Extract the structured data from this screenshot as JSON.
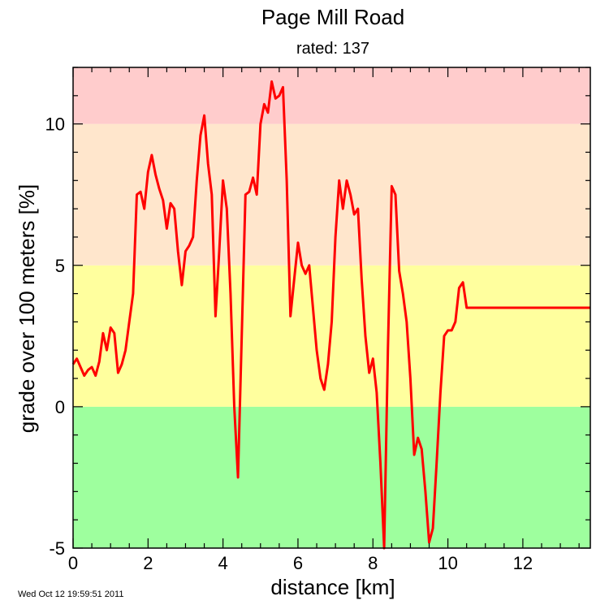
{
  "chart_data": {
    "type": "line",
    "title": "Page Mill Road",
    "subtitle": "rated: 137",
    "xlabel": "distance [km]",
    "ylabel": "grade over 100 meters [%]",
    "xlim": [
      0,
      13.8
    ],
    "ylim": [
      -5,
      12
    ],
    "x_ticks": [
      0,
      2,
      4,
      6,
      8,
      10,
      12
    ],
    "y_ticks": [
      -5,
      0,
      5,
      10
    ],
    "bands": [
      {
        "from": -5,
        "to": 0,
        "color": "#9eff9e"
      },
      {
        "from": 0,
        "to": 5,
        "color": "#ffff9e"
      },
      {
        "from": 5,
        "to": 10,
        "color": "#ffe6cc"
      },
      {
        "from": 10,
        "to": 12,
        "color": "#ffcccc"
      }
    ],
    "series": [
      {
        "color": "#ff0000",
        "x": [
          0,
          0.1,
          0.2,
          0.3,
          0.4,
          0.5,
          0.6,
          0.7,
          0.8,
          0.9,
          1.0,
          1.1,
          1.2,
          1.3,
          1.4,
          1.5,
          1.6,
          1.7,
          1.8,
          1.9,
          2.0,
          2.1,
          2.2,
          2.3,
          2.4,
          2.5,
          2.6,
          2.7,
          2.8,
          2.9,
          3.0,
          3.1,
          3.2,
          3.3,
          3.4,
          3.5,
          3.6,
          3.7,
          3.8,
          3.9,
          4.0,
          4.1,
          4.2,
          4.3,
          4.4,
          4.5,
          4.6,
          4.7,
          4.8,
          4.9,
          5.0,
          5.1,
          5.2,
          5.3,
          5.4,
          5.5,
          5.6,
          5.7,
          5.8,
          5.9,
          6.0,
          6.1,
          6.2,
          6.3,
          6.4,
          6.5,
          6.6,
          6.7,
          6.8,
          6.9,
          7.0,
          7.1,
          7.2,
          7.3,
          7.4,
          7.5,
          7.6,
          7.7,
          7.8,
          7.9,
          8.0,
          8.1,
          8.2,
          8.3,
          8.4,
          8.5,
          8.6,
          8.7,
          8.8,
          8.9,
          9.0,
          9.1,
          9.2,
          9.3,
          9.4,
          9.5,
          9.6,
          9.7,
          9.8,
          9.9,
          10.0,
          10.1,
          10.2,
          10.3,
          10.4,
          10.5,
          10.6,
          10.7,
          10.8,
          10.9,
          11.0,
          11.1,
          11.2,
          11.3,
          11.4,
          11.5,
          11.6,
          11.7,
          11.8,
          11.9,
          12.0,
          12.1,
          12.2,
          12.3,
          12.4,
          12.5,
          12.6,
          12.7,
          12.8,
          12.9,
          13.0,
          13.1,
          13.2,
          13.3,
          13.4,
          13.5,
          13.6,
          13.7,
          13.8
        ],
        "values": [
          1.5,
          1.7,
          1.4,
          1.1,
          1.3,
          1.4,
          1.1,
          1.6,
          2.6,
          2.0,
          2.8,
          2.6,
          1.2,
          1.5,
          2.0,
          3.0,
          4.0,
          7.5,
          7.6,
          7.0,
          8.3,
          8.9,
          8.2,
          7.7,
          7.3,
          6.3,
          7.2,
          7.0,
          5.5,
          4.3,
          5.5,
          5.7,
          6.0,
          8.0,
          9.6,
          10.3,
          8.6,
          7.5,
          3.2,
          5.5,
          8.0,
          7.0,
          4.0,
          0.0,
          -2.5,
          2.5,
          7.5,
          7.6,
          8.1,
          7.5,
          10.0,
          10.7,
          10.4,
          11.5,
          10.9,
          11.0,
          11.3,
          8.0,
          3.2,
          4.5,
          5.8,
          5.0,
          4.7,
          5.0,
          3.5,
          2.0,
          1.0,
          0.6,
          1.5,
          3.0,
          6.0,
          8.0,
          7.0,
          8.0,
          7.5,
          6.8,
          7.0,
          4.5,
          2.5,
          1.2,
          1.7,
          0.5,
          -2.0,
          -5.0,
          2.0,
          7.8,
          7.5,
          4.8,
          4.0,
          3.0,
          1.0,
          -1.7,
          -1.1,
          -1.5,
          -3.0,
          -4.8,
          -4.3,
          -2.0,
          0.5,
          2.5,
          2.7,
          2.7,
          3.0,
          4.2,
          4.4,
          3.5,
          3.5,
          3.5,
          3.5,
          3.5,
          3.5,
          3.5,
          3.5,
          3.5,
          3.5,
          3.5,
          3.5,
          3.5,
          3.5,
          3.5,
          3.5,
          3.5,
          3.5,
          3.5,
          3.5,
          3.5,
          3.5,
          3.5,
          3.5,
          3.5,
          3.5,
          3.5,
          3.5,
          3.5,
          3.5,
          3.5,
          3.5,
          3.5,
          3.5
        ]
      }
    ],
    "grid": false
  },
  "timestamp": "Wed Oct 12 19:59:51 2011"
}
